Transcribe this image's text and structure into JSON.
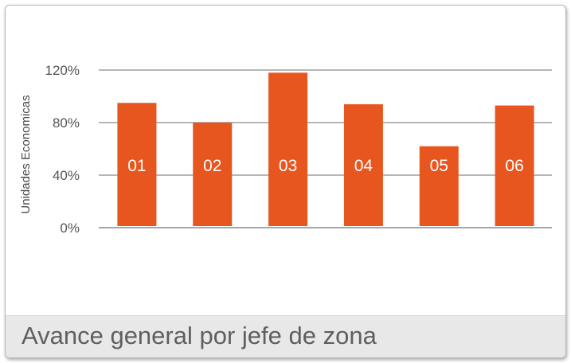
{
  "footer": {
    "title": "Avance general por jefe de zona"
  },
  "colors": {
    "bar": "#e8561f",
    "grid": "#8a8a8a",
    "axis": "#555555"
  },
  "chart_data": {
    "type": "bar",
    "categories": [
      "01",
      "02",
      "03",
      "04",
      "05",
      "06"
    ],
    "values": [
      95,
      80,
      118,
      94,
      62,
      93
    ],
    "ylabel": "Unidades Economicas",
    "ylim": [
      0,
      120
    ],
    "yticks": [
      0,
      40,
      80,
      120
    ],
    "ytick_labels": [
      "0%",
      "40%",
      "80%",
      "120%"
    ],
    "grid": true,
    "legend": "none"
  }
}
